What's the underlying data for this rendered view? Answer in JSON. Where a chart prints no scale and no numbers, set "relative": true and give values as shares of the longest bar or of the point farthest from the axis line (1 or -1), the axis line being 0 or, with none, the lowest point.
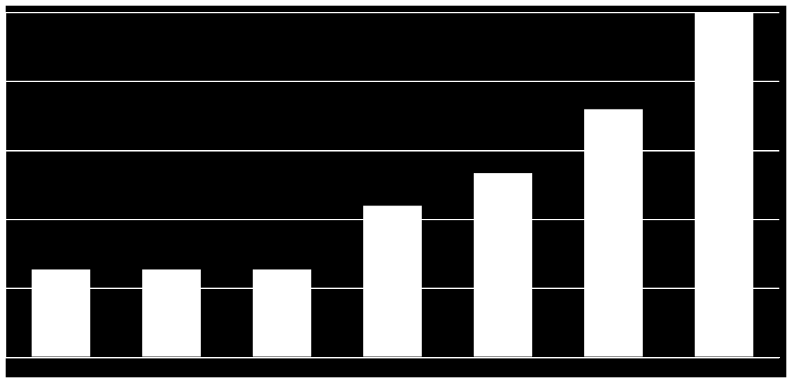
{
  "chart_data": {
    "type": "bar",
    "relative": true,
    "categories": [
      null,
      null,
      null,
      null,
      null,
      null,
      null
    ],
    "values": [
      0.255,
      0.255,
      0.255,
      0.44,
      0.534,
      0.72,
      1
    ],
    "color": "#ffffff",
    "grid": "y",
    "legend": false
  }
}
